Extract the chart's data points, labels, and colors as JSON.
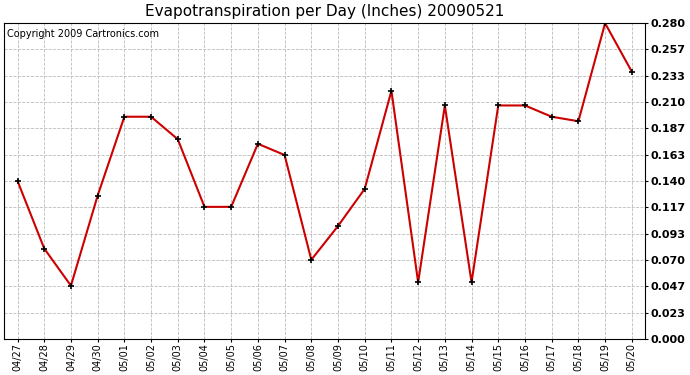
{
  "title": "Evapotranspiration per Day (Inches) 20090521",
  "copyright": "Copyright 2009 Cartronics.com",
  "x_labels": [
    "04/27",
    "04/28",
    "04/29",
    "04/30",
    "05/01",
    "05/02",
    "05/03",
    "05/04",
    "05/05",
    "05/06",
    "05/07",
    "05/08",
    "05/09",
    "05/10",
    "05/11",
    "05/12",
    "05/13",
    "05/14",
    "05/15",
    "05/16",
    "05/17",
    "05/18",
    "05/19",
    "05/20"
  ],
  "y_values": [
    0.14,
    0.08,
    0.047,
    0.127,
    0.197,
    0.197,
    0.177,
    0.117,
    0.117,
    0.173,
    0.163,
    0.07,
    0.1,
    0.133,
    0.22,
    0.05,
    0.207,
    0.05,
    0.207,
    0.207,
    0.197,
    0.193,
    0.28,
    0.237
  ],
  "y_ticks": [
    0.0,
    0.023,
    0.047,
    0.07,
    0.093,
    0.117,
    0.14,
    0.163,
    0.187,
    0.21,
    0.233,
    0.257,
    0.28
  ],
  "y_min": 0.0,
  "y_max": 0.28,
  "line_color": "#cc0000",
  "marker_color": "#000000",
  "bg_color": "#ffffff",
  "plot_bg_color": "#ffffff",
  "grid_color": "#bbbbbb",
  "title_fontsize": 11,
  "copyright_fontsize": 7,
  "tick_fontsize": 8,
  "x_tick_fontsize": 7
}
